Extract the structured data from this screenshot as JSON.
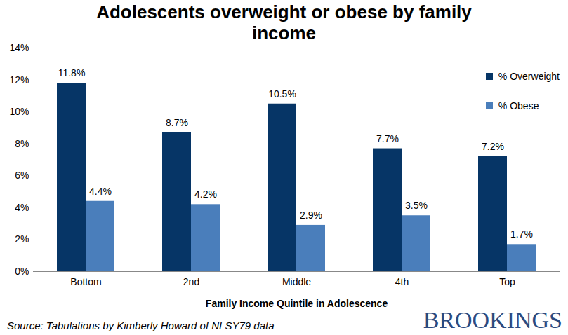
{
  "chart_data": {
    "type": "bar",
    "title": "Adolescents overweight or obese by family income",
    "x_label": "Family Income Quintile in Adolescence",
    "source": "Source: Tabulations by Kimberly Howard of NLSY79 data",
    "annotations": [
      "BROOKINGS"
    ],
    "categories": [
      "Bottom",
      "2nd",
      "Middle",
      "4th",
      "Top"
    ],
    "series": [
      {
        "name": "% Overweight",
        "color": "#063566",
        "values": [
          11.8,
          8.7,
          10.5,
          7.7,
          7.2
        ],
        "value_labels": [
          "11.8%",
          "8.7%",
          "10.5%",
          "7.7%",
          "7.2%"
        ]
      },
      {
        "name": "% Obese",
        "color": "#4a7ebb",
        "values": [
          4.4,
          4.2,
          2.9,
          3.5,
          1.7
        ],
        "value_labels": [
          "4.4%",
          "4.2%",
          "2.9%",
          "3.5%",
          "1.7%"
        ]
      }
    ],
    "ylim": [
      0,
      14
    ],
    "yticks": [
      {
        "value": 0,
        "label": "0%"
      },
      {
        "value": 2,
        "label": "2%"
      },
      {
        "value": 4,
        "label": "4%"
      },
      {
        "value": 6,
        "label": "6%"
      },
      {
        "value": 8,
        "label": "8%"
      },
      {
        "value": 10,
        "label": "10%"
      },
      {
        "value": 12,
        "label": "12%"
      },
      {
        "value": 14,
        "label": "14%"
      }
    ],
    "grid": false,
    "legend": "top-right",
    "data_labels": true
  }
}
